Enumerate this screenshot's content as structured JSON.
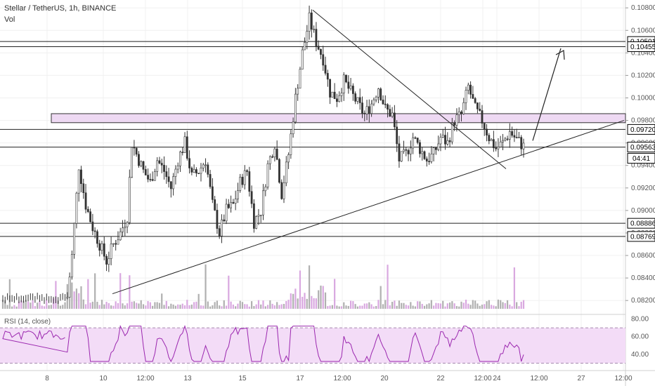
{
  "header": {
    "symbol_line": "Stellar / TetherUS, 1h, BINANCE",
    "volume_label": "Vol"
  },
  "chart_data": {
    "type": "candlestick",
    "title": "Stellar / TetherUS, 1h, BINANCE",
    "price_axis": {
      "ticks": [
        "0.10800",
        "0.10600",
        "0.10400",
        "0.10200",
        "0.10000",
        "0.09800",
        "0.09600",
        "0.09400",
        "0.09200",
        "0.09000",
        "0.08800",
        "0.08600",
        "0.08400",
        "0.08200"
      ],
      "range": [
        0.0812,
        0.1082
      ]
    },
    "time_axis": {
      "ticks": [
        "8",
        "10",
        "12:00",
        "13",
        "15",
        "17",
        "12:00",
        "20",
        "22",
        "12:00",
        "24",
        "12:00",
        "27",
        "12:00"
      ]
    },
    "horizontal_levels": [
      {
        "value": 0.10501,
        "label": "0.10501"
      },
      {
        "value": 0.10455,
        "label": "0.10455"
      },
      {
        "value": 0.0972,
        "label": "0.09720"
      },
      {
        "value": 0.09563,
        "label": "0.09563"
      },
      {
        "value": 0.08886,
        "label": "0.08886"
      },
      {
        "value": 0.08769,
        "label": "0.08769"
      }
    ],
    "current_price_countdown": "04:41",
    "resistance_zone": {
      "low": 0.0978,
      "high": 0.0986
    },
    "rsi": {
      "label": "RSI (14, close)",
      "ticks": [
        "80.00",
        "60.00",
        "40.00"
      ],
      "band": [
        30,
        70
      ],
      "range": [
        28,
        82
      ]
    },
    "colors": {
      "up": "#333333",
      "down": "#333333",
      "volume_up": "#b0b0b0",
      "volume_down": "#d9a8e0",
      "rsi_line": "#9b27af",
      "rsi_band": "#f3dcf7",
      "zone_fill": "#eed9f3"
    }
  }
}
